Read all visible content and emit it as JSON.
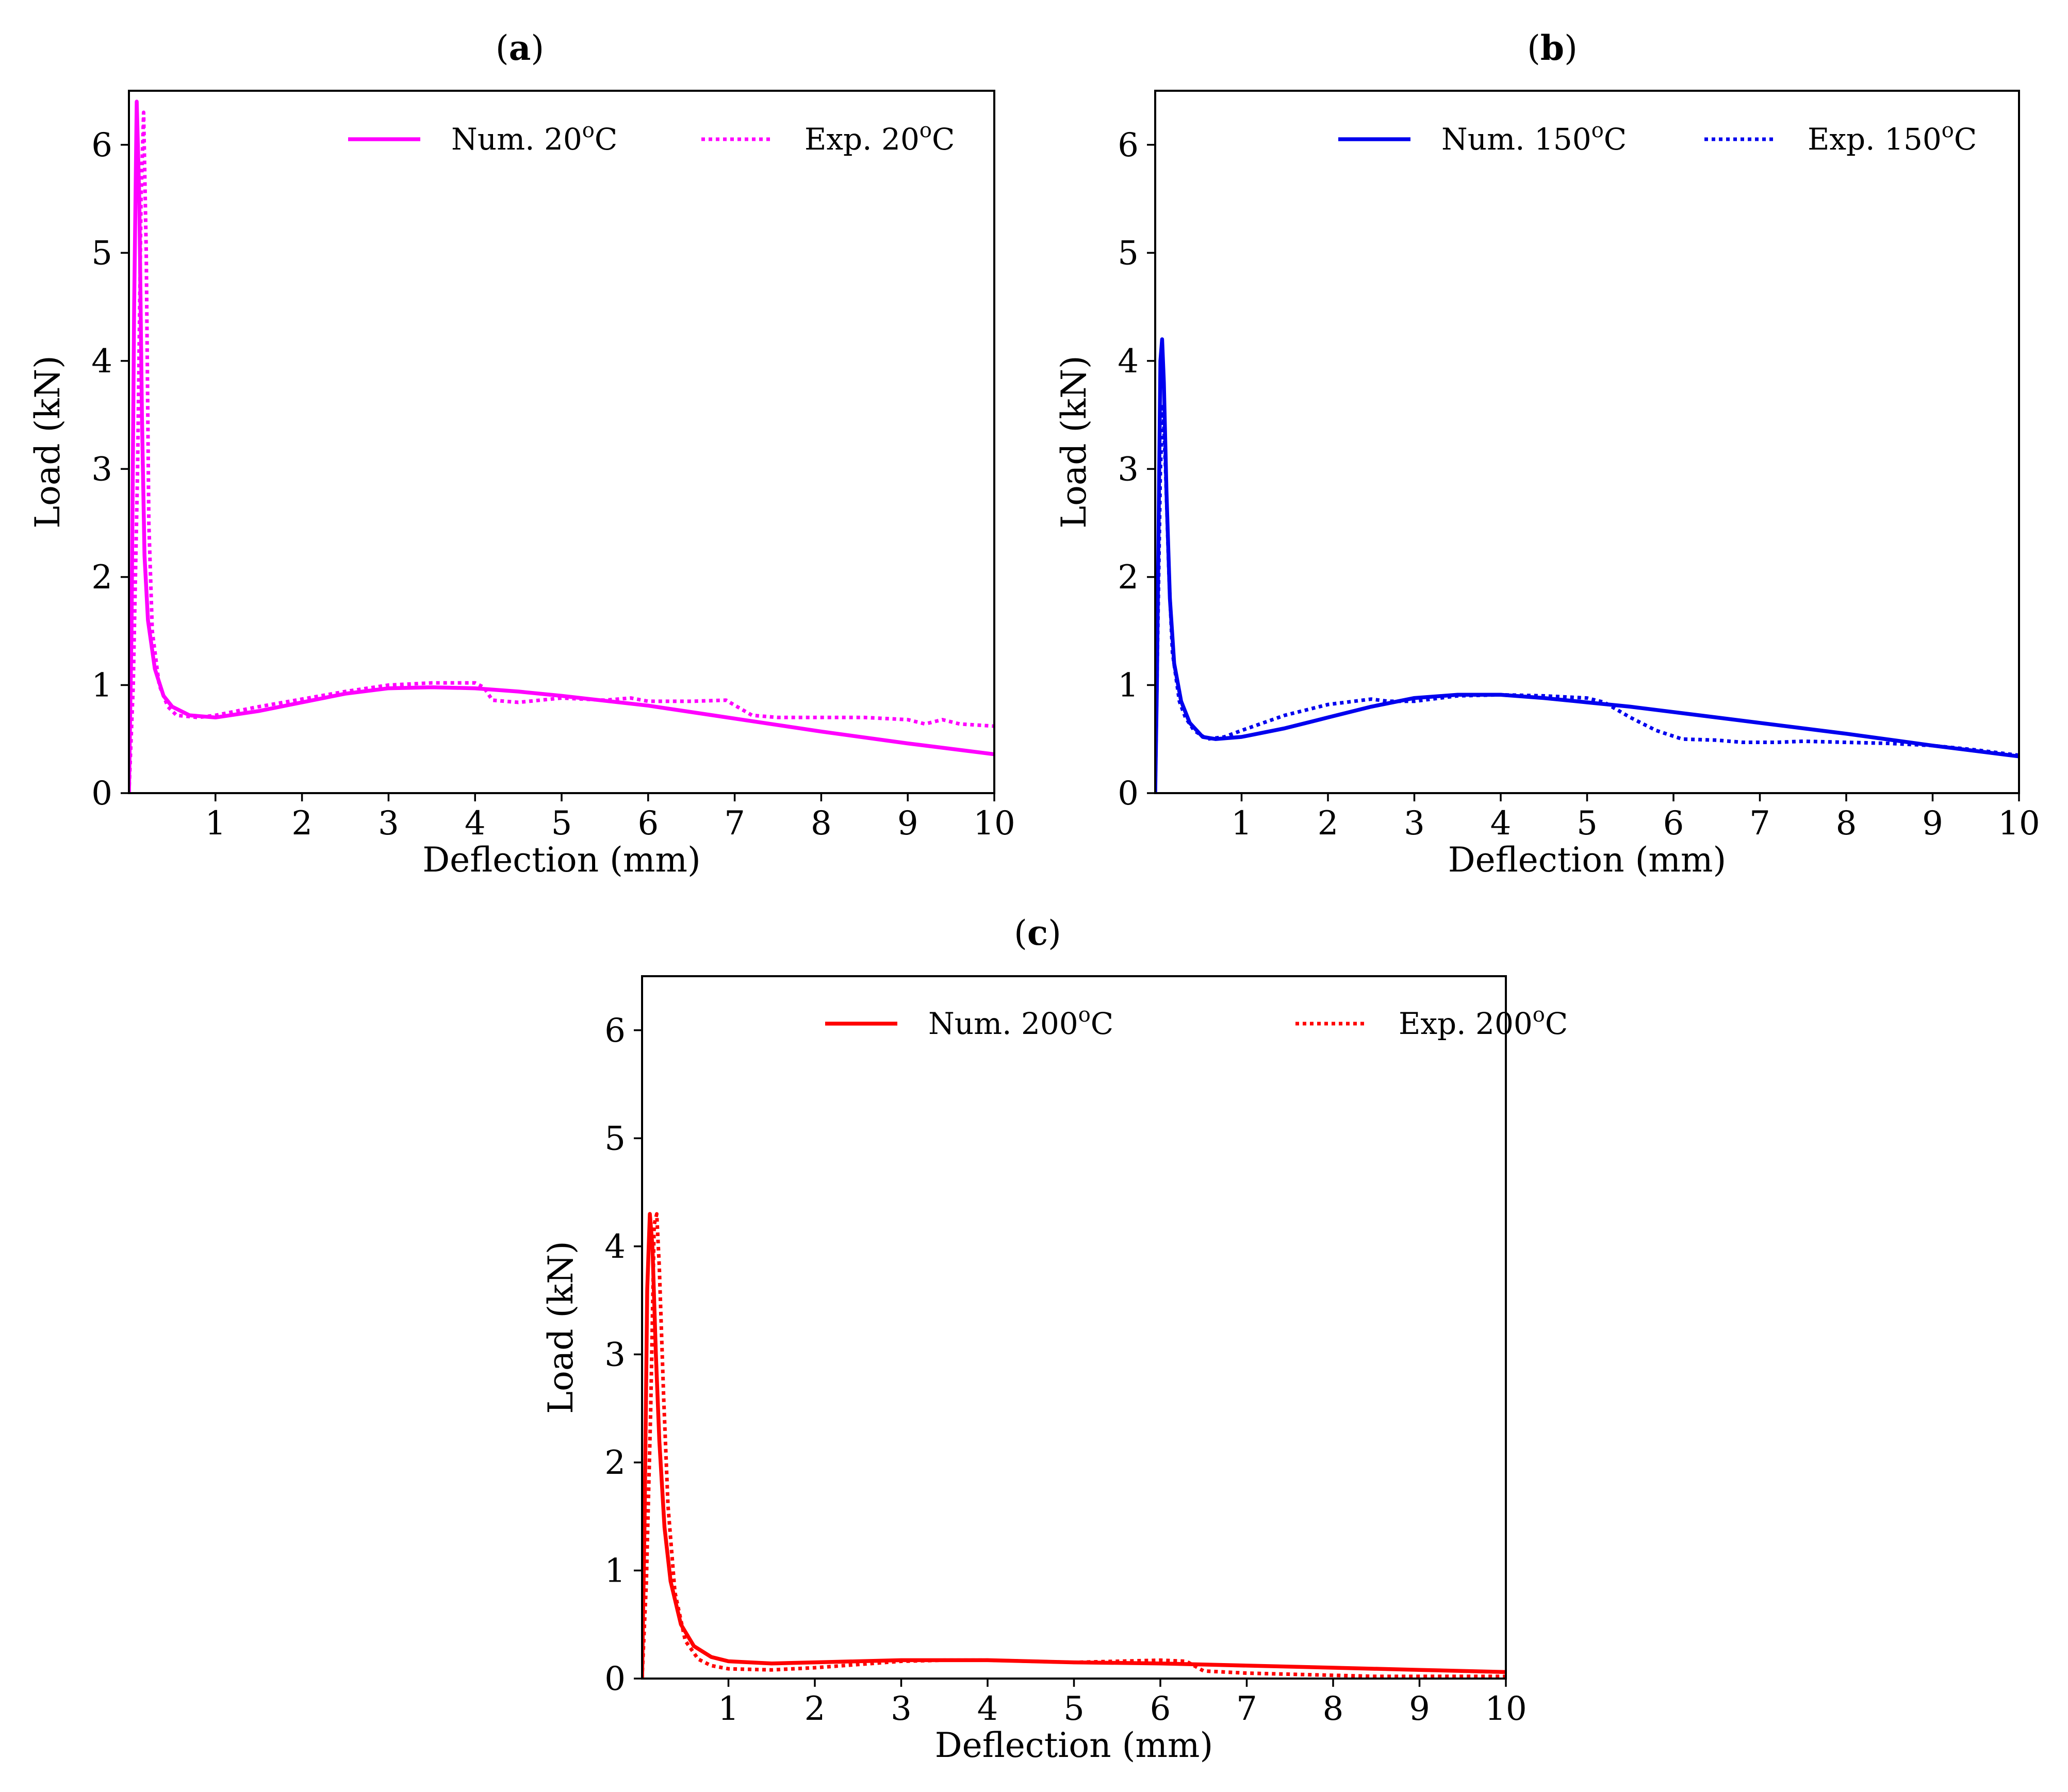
{
  "chart_data": [
    {
      "panel_label": "a",
      "type": "line",
      "title": "(a)",
      "xlabel": "Deflection (mm)",
      "ylabel": "Load (kN)",
      "xlim": [
        0,
        10
      ],
      "ylim": [
        0,
        6.5
      ],
      "xticks": [
        1,
        2,
        3,
        4,
        5,
        6,
        7,
        8,
        9,
        10
      ],
      "yticks": [
        0,
        1,
        2,
        3,
        4,
        5,
        6
      ],
      "grid": false,
      "legend_position": "top-right",
      "series": [
        {
          "name": "Num. 20",
          "name_sup": "o",
          "name_suffix": "C",
          "color": "#ff00ff",
          "style": "solid",
          "points": [
            [
              0,
              0
            ],
            [
              0.03,
              1.5
            ],
            [
              0.06,
              4.5
            ],
            [
              0.09,
              6.4
            ],
            [
              0.12,
              5.5
            ],
            [
              0.15,
              3.5
            ],
            [
              0.18,
              2.2
            ],
            [
              0.22,
              1.6
            ],
            [
              0.3,
              1.15
            ],
            [
              0.4,
              0.9
            ],
            [
              0.5,
              0.8
            ],
            [
              0.7,
              0.72
            ],
            [
              1.0,
              0.7
            ],
            [
              1.5,
              0.76
            ],
            [
              2.0,
              0.84
            ],
            [
              2.5,
              0.92
            ],
            [
              3.0,
              0.97
            ],
            [
              3.5,
              0.98
            ],
            [
              4.0,
              0.97
            ],
            [
              4.5,
              0.94
            ],
            [
              5.0,
              0.9
            ],
            [
              6.0,
              0.81
            ],
            [
              7.0,
              0.69
            ],
            [
              8.0,
              0.57
            ],
            [
              9.0,
              0.46
            ],
            [
              10.0,
              0.36
            ]
          ]
        },
        {
          "name": "Exp. 20",
          "name_sup": "o",
          "name_suffix": "C",
          "color": "#ff00ff",
          "style": "dotted",
          "points": [
            [
              0,
              0
            ],
            [
              0.05,
              1.0
            ],
            [
              0.1,
              3.0
            ],
            [
              0.14,
              5.5
            ],
            [
              0.17,
              6.3
            ],
            [
              0.2,
              5.0
            ],
            [
              0.23,
              2.5
            ],
            [
              0.27,
              1.5
            ],
            [
              0.35,
              1.0
            ],
            [
              0.45,
              0.8
            ],
            [
              0.55,
              0.72
            ],
            [
              0.8,
              0.7
            ],
            [
              1.0,
              0.72
            ],
            [
              1.5,
              0.8
            ],
            [
              2.0,
              0.87
            ],
            [
              2.5,
              0.94
            ],
            [
              3.0,
              1.0
            ],
            [
              3.5,
              1.02
            ],
            [
              4.0,
              1.02
            ],
            [
              4.1,
              0.98
            ],
            [
              4.2,
              0.86
            ],
            [
              4.5,
              0.84
            ],
            [
              5.0,
              0.88
            ],
            [
              5.5,
              0.86
            ],
            [
              5.8,
              0.88
            ],
            [
              6.0,
              0.85
            ],
            [
              6.5,
              0.85
            ],
            [
              6.9,
              0.86
            ],
            [
              7.2,
              0.72
            ],
            [
              7.5,
              0.7
            ],
            [
              8.0,
              0.7
            ],
            [
              8.5,
              0.7
            ],
            [
              9.0,
              0.68
            ],
            [
              9.2,
              0.64
            ],
            [
              9.4,
              0.68
            ],
            [
              9.6,
              0.64
            ],
            [
              10.0,
              0.62
            ]
          ]
        }
      ]
    },
    {
      "panel_label": "b",
      "type": "line",
      "title": "(b)",
      "xlabel": "Deflection (mm)",
      "ylabel": "Load (kN)",
      "xlim": [
        0,
        10
      ],
      "ylim": [
        0,
        6.5
      ],
      "xticks": [
        1,
        2,
        3,
        4,
        5,
        6,
        7,
        8,
        9,
        10
      ],
      "yticks": [
        0,
        1,
        2,
        3,
        4,
        5,
        6
      ],
      "grid": false,
      "legend_position": "top-right",
      "series": [
        {
          "name": "Num. 150",
          "name_sup": "o",
          "name_suffix": "C",
          "color": "#0000ee",
          "style": "solid",
          "points": [
            [
              0,
              0
            ],
            [
              0.02,
              1.0
            ],
            [
              0.04,
              2.5
            ],
            [
              0.06,
              4.0
            ],
            [
              0.08,
              4.2
            ],
            [
              0.1,
              3.8
            ],
            [
              0.13,
              2.8
            ],
            [
              0.17,
              1.8
            ],
            [
              0.22,
              1.2
            ],
            [
              0.3,
              0.85
            ],
            [
              0.4,
              0.65
            ],
            [
              0.55,
              0.52
            ],
            [
              0.7,
              0.5
            ],
            [
              1.0,
              0.52
            ],
            [
              1.5,
              0.6
            ],
            [
              2.0,
              0.7
            ],
            [
              2.5,
              0.8
            ],
            [
              3.0,
              0.88
            ],
            [
              3.5,
              0.91
            ],
            [
              4.0,
              0.91
            ],
            [
              4.5,
              0.88
            ],
            [
              5.0,
              0.84
            ],
            [
              5.5,
              0.8
            ],
            [
              6.0,
              0.75
            ],
            [
              7.0,
              0.65
            ],
            [
              8.0,
              0.55
            ],
            [
              9.0,
              0.44
            ],
            [
              10.0,
              0.34
            ]
          ]
        },
        {
          "name": "Exp. 150",
          "name_sup": "o",
          "name_suffix": "C",
          "color": "#0000ee",
          "style": "dotted",
          "points": [
            [
              0,
              0
            ],
            [
              0.03,
              1.5
            ],
            [
              0.06,
              3.0
            ],
            [
              0.09,
              3.6
            ],
            [
              0.12,
              3.0
            ],
            [
              0.16,
              2.0
            ],
            [
              0.2,
              1.3
            ],
            [
              0.28,
              0.85
            ],
            [
              0.35,
              0.7
            ],
            [
              0.45,
              0.58
            ],
            [
              0.6,
              0.5
            ],
            [
              0.8,
              0.52
            ],
            [
              1.0,
              0.58
            ],
            [
              1.5,
              0.72
            ],
            [
              2.0,
              0.82
            ],
            [
              2.5,
              0.87
            ],
            [
              2.7,
              0.85
            ],
            [
              3.0,
              0.85
            ],
            [
              3.5,
              0.9
            ],
            [
              4.0,
              0.91
            ],
            [
              4.5,
              0.9
            ],
            [
              5.0,
              0.88
            ],
            [
              5.2,
              0.84
            ],
            [
              5.5,
              0.7
            ],
            [
              5.8,
              0.58
            ],
            [
              6.1,
              0.5
            ],
            [
              6.5,
              0.49
            ],
            [
              6.8,
              0.47
            ],
            [
              7.2,
              0.47
            ],
            [
              7.5,
              0.48
            ],
            [
              8.0,
              0.47
            ],
            [
              8.5,
              0.46
            ],
            [
              9.0,
              0.44
            ],
            [
              9.5,
              0.4
            ],
            [
              10.0,
              0.35
            ]
          ]
        }
      ]
    },
    {
      "panel_label": "c",
      "type": "line",
      "title": "(c)",
      "xlabel": "Deflection (mm)",
      "ylabel": "Load (kN)",
      "xlim": [
        0,
        10
      ],
      "ylim": [
        0,
        6.5
      ],
      "xticks": [
        1,
        2,
        3,
        4,
        5,
        6,
        7,
        8,
        9,
        10
      ],
      "yticks": [
        0,
        1,
        2,
        3,
        4,
        5,
        6
      ],
      "grid": false,
      "legend_position": "top-right",
      "series": [
        {
          "name": "Num. 200",
          "name_sup": "o",
          "name_suffix": "C",
          "color": "#ff0000",
          "style": "solid",
          "points": [
            [
              0,
              0
            ],
            [
              0.03,
              1.5
            ],
            [
              0.06,
              3.6
            ],
            [
              0.09,
              4.3
            ],
            [
              0.12,
              4.0
            ],
            [
              0.16,
              3.0
            ],
            [
              0.2,
              2.2
            ],
            [
              0.26,
              1.4
            ],
            [
              0.33,
              0.9
            ],
            [
              0.45,
              0.5
            ],
            [
              0.6,
              0.3
            ],
            [
              0.8,
              0.2
            ],
            [
              1.0,
              0.16
            ],
            [
              1.5,
              0.14
            ],
            [
              2.0,
              0.15
            ],
            [
              2.5,
              0.16
            ],
            [
              3.0,
              0.17
            ],
            [
              3.5,
              0.17
            ],
            [
              4.0,
              0.17
            ],
            [
              4.5,
              0.16
            ],
            [
              5.0,
              0.15
            ],
            [
              6.0,
              0.14
            ],
            [
              7.0,
              0.12
            ],
            [
              8.0,
              0.1
            ],
            [
              9.0,
              0.08
            ],
            [
              10.0,
              0.06
            ]
          ]
        },
        {
          "name": "Exp. 200",
          "name_sup": "o",
          "name_suffix": "C",
          "color": "#ff0000",
          "style": "dotted",
          "points": [
            [
              0,
              0
            ],
            [
              0.05,
              0.9
            ],
            [
              0.1,
              2.5
            ],
            [
              0.14,
              4.2
            ],
            [
              0.17,
              4.3
            ],
            [
              0.2,
              3.8
            ],
            [
              0.25,
              2.6
            ],
            [
              0.3,
              1.6
            ],
            [
              0.38,
              0.8
            ],
            [
              0.5,
              0.35
            ],
            [
              0.65,
              0.18
            ],
            [
              0.8,
              0.12
            ],
            [
              1.0,
              0.09
            ],
            [
              1.5,
              0.08
            ],
            [
              2.0,
              0.1
            ],
            [
              2.5,
              0.13
            ],
            [
              3.0,
              0.16
            ],
            [
              3.5,
              0.17
            ],
            [
              4.0,
              0.17
            ],
            [
              4.5,
              0.16
            ],
            [
              5.0,
              0.15
            ],
            [
              5.5,
              0.16
            ],
            [
              6.0,
              0.17
            ],
            [
              6.3,
              0.16
            ],
            [
              6.5,
              0.07
            ],
            [
              7.0,
              0.05
            ],
            [
              7.5,
              0.04
            ],
            [
              8.0,
              0.03
            ],
            [
              8.5,
              0.02
            ],
            [
              9.0,
              0.02
            ],
            [
              10.0,
              0.02
            ]
          ]
        }
      ]
    }
  ]
}
